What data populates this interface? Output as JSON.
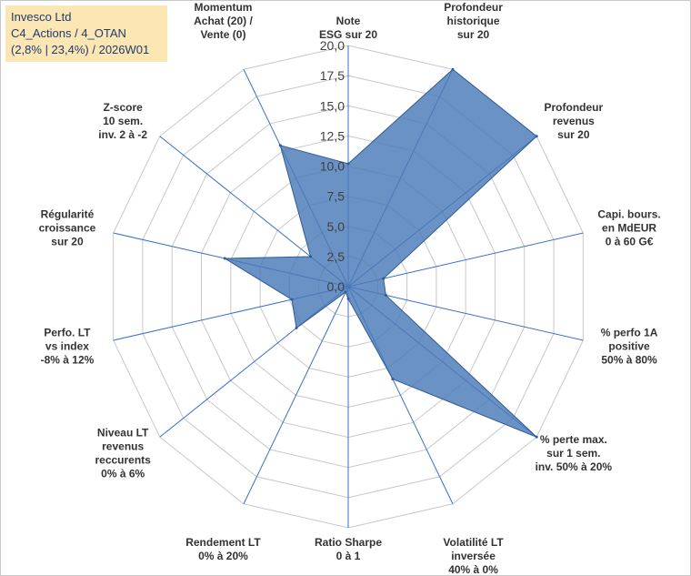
{
  "title_box": {
    "line1": "Invesco Ltd",
    "line2": "C4_Actions / 4_OTAN",
    "line3": "(2,8% | 23,4%) / 2026W01"
  },
  "chart_data": {
    "type": "radar",
    "title": "Invesco Ltd",
    "r_range": [
      0,
      20
    ],
    "ticks": [
      "0,0",
      "2,5",
      "5,0",
      "7,5",
      "10,0",
      "12,5",
      "15,0",
      "17,5",
      "20,0"
    ],
    "categories": [
      [
        "Note",
        "ESG sur 20"
      ],
      [
        "Profondeur",
        "historique",
        "sur 20"
      ],
      [
        "Profondeur",
        "revenus",
        "sur 20"
      ],
      [
        "Capi. bours.",
        "en MdEUR",
        "0 à 60 G€"
      ],
      [
        "% perfo 1A",
        "positive",
        "50% à 80%"
      ],
      [
        "% perte max.",
        "sur 1 sem.",
        "inv. 50% à 20%"
      ],
      [
        "Volatilité LT",
        "inversée",
        "40% à 0%"
      ],
      [
        "Ratio Sharpe",
        "0 à 1"
      ],
      [
        "Rendement LT",
        "0% à 20%"
      ],
      [
        "Niveau LT",
        "revenus",
        "reccurents",
        "0% à 6%"
      ],
      [
        "Perfo. LT",
        "vs index",
        "-8% à 12%"
      ],
      [
        "Régularité",
        "croissance",
        "sur 20"
      ],
      [
        "Z-score",
        "10 sem.",
        "inv. 2 à -2"
      ],
      [
        "Momentum",
        "Achat (20) /",
        "Vente (0)"
      ]
    ],
    "series": [
      {
        "name": "Invesco Ltd",
        "values": [
          10.2,
          20,
          20,
          3.0,
          3.2,
          20,
          8.5,
          1.0,
          0.5,
          5.5,
          4.8,
          10.5,
          4.0,
          13.0
        ],
        "fill": "#4a7ab8",
        "stroke": "#2e5a96"
      }
    ],
    "grid_color": "#c8c8c8",
    "spoke_color": "#3a6fc8",
    "grid": true
  }
}
